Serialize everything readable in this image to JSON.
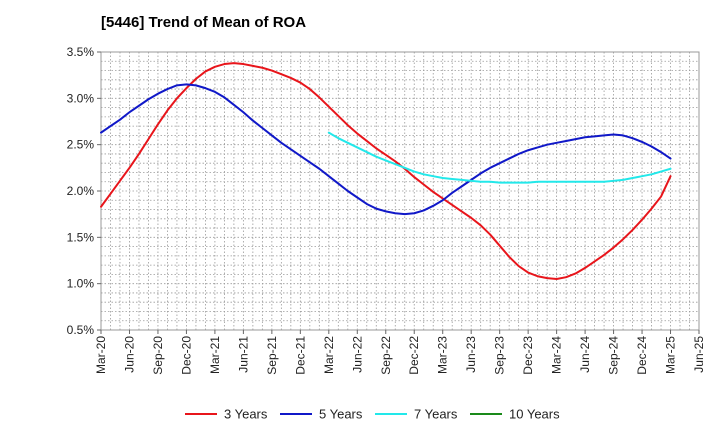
{
  "title": "[5446]  Trend of Mean of ROA",
  "chart_data": {
    "type": "line",
    "title": "[5446]  Trend of Mean of ROA",
    "xlabel": "",
    "ylabel": "",
    "x_ticks": [
      "Mar-20",
      "Jun-20",
      "Sep-20",
      "Dec-20",
      "Mar-21",
      "Jun-21",
      "Sep-21",
      "Dec-21",
      "Mar-22",
      "Jun-22",
      "Sep-22",
      "Dec-22",
      "Mar-23",
      "Jun-23",
      "Sep-23",
      "Dec-23",
      "Mar-24",
      "Jun-24",
      "Sep-24",
      "Dec-24",
      "Mar-25",
      "Jun-25"
    ],
    "y_ticks": [
      "0.5%",
      "1.0%",
      "1.5%",
      "2.0%",
      "2.5%",
      "3.0%",
      "3.5%"
    ],
    "ylim": [
      0.5,
      3.5
    ],
    "grid": true,
    "legend_position": "bottom",
    "series": [
      {
        "name": "3 Years",
        "color": "#e8151b",
        "values": [
          [
            "Mar-20",
            1.83
          ],
          [
            "Apr-20",
            1.97
          ],
          [
            "May-20",
            2.11
          ],
          [
            "Jun-20",
            2.25
          ],
          [
            "Jul-20",
            2.4
          ],
          [
            "Aug-20",
            2.56
          ],
          [
            "Sep-20",
            2.72
          ],
          [
            "Oct-20",
            2.87
          ],
          [
            "Nov-20",
            3.0
          ],
          [
            "Dec-20",
            3.11
          ],
          [
            "Jan-21",
            3.21
          ],
          [
            "Feb-21",
            3.29
          ],
          [
            "Mar-21",
            3.34
          ],
          [
            "Apr-21",
            3.37
          ],
          [
            "May-21",
            3.38
          ],
          [
            "Jun-21",
            3.37
          ],
          [
            "Jul-21",
            3.35
          ],
          [
            "Aug-21",
            3.33
          ],
          [
            "Sep-21",
            3.3
          ],
          [
            "Oct-21",
            3.26
          ],
          [
            "Nov-21",
            3.22
          ],
          [
            "Dec-21",
            3.17
          ],
          [
            "Jan-22",
            3.1
          ],
          [
            "Feb-22",
            3.01
          ],
          [
            "Mar-22",
            2.91
          ],
          [
            "Apr-22",
            2.81
          ],
          [
            "May-22",
            2.71
          ],
          [
            "Jun-22",
            2.62
          ],
          [
            "Jul-22",
            2.54
          ],
          [
            "Aug-22",
            2.46
          ],
          [
            "Sep-22",
            2.39
          ],
          [
            "Oct-22",
            2.32
          ],
          [
            "Nov-22",
            2.24
          ],
          [
            "Dec-22",
            2.15
          ],
          [
            "Jan-23",
            2.07
          ],
          [
            "Feb-23",
            1.99
          ],
          [
            "Mar-23",
            1.92
          ],
          [
            "Apr-23",
            1.85
          ],
          [
            "May-23",
            1.78
          ],
          [
            "Jun-23",
            1.71
          ],
          [
            "Jul-23",
            1.63
          ],
          [
            "Aug-23",
            1.53
          ],
          [
            "Sep-23",
            1.41
          ],
          [
            "Oct-23",
            1.29
          ],
          [
            "Nov-23",
            1.19
          ],
          [
            "Dec-23",
            1.12
          ],
          [
            "Jan-24",
            1.08
          ],
          [
            "Feb-24",
            1.06
          ],
          [
            "Mar-24",
            1.05
          ],
          [
            "Apr-24",
            1.07
          ],
          [
            "May-24",
            1.11
          ],
          [
            "Jun-24",
            1.17
          ],
          [
            "Jul-24",
            1.24
          ],
          [
            "Aug-24",
            1.31
          ],
          [
            "Sep-24",
            1.39
          ],
          [
            "Oct-24",
            1.48
          ],
          [
            "Nov-24",
            1.58
          ],
          [
            "Dec-24",
            1.69
          ],
          [
            "Jan-25",
            1.81
          ],
          [
            "Feb-25",
            1.94
          ],
          [
            "Mar-25",
            2.16
          ]
        ]
      },
      {
        "name": "5 Years",
        "color": "#1018c8",
        "values": [
          [
            "Mar-20",
            2.63
          ],
          [
            "Apr-20",
            2.7
          ],
          [
            "May-20",
            2.77
          ],
          [
            "Jun-20",
            2.85
          ],
          [
            "Jul-20",
            2.92
          ],
          [
            "Aug-20",
            2.99
          ],
          [
            "Sep-20",
            3.05
          ],
          [
            "Oct-20",
            3.1
          ],
          [
            "Nov-20",
            3.14
          ],
          [
            "Dec-20",
            3.15
          ],
          [
            "Jan-21",
            3.14
          ],
          [
            "Feb-21",
            3.11
          ],
          [
            "Mar-21",
            3.07
          ],
          [
            "Apr-21",
            3.01
          ],
          [
            "May-21",
            2.93
          ],
          [
            "Jun-21",
            2.85
          ],
          [
            "Jul-21",
            2.76
          ],
          [
            "Aug-21",
            2.68
          ],
          [
            "Sep-21",
            2.6
          ],
          [
            "Oct-21",
            2.52
          ],
          [
            "Nov-21",
            2.45
          ],
          [
            "Dec-21",
            2.38
          ],
          [
            "Jan-22",
            2.31
          ],
          [
            "Feb-22",
            2.24
          ],
          [
            "Mar-22",
            2.16
          ],
          [
            "Apr-22",
            2.08
          ],
          [
            "May-22",
            2.0
          ],
          [
            "Jun-22",
            1.93
          ],
          [
            "Jul-22",
            1.86
          ],
          [
            "Aug-22",
            1.81
          ],
          [
            "Sep-22",
            1.78
          ],
          [
            "Oct-22",
            1.76
          ],
          [
            "Nov-22",
            1.75
          ],
          [
            "Dec-22",
            1.76
          ],
          [
            "Jan-23",
            1.79
          ],
          [
            "Feb-23",
            1.84
          ],
          [
            "Mar-23",
            1.9
          ],
          [
            "Apr-23",
            1.98
          ],
          [
            "May-23",
            2.05
          ],
          [
            "Jun-23",
            2.12
          ],
          [
            "Jul-23",
            2.19
          ],
          [
            "Aug-23",
            2.25
          ],
          [
            "Sep-23",
            2.3
          ],
          [
            "Oct-23",
            2.35
          ],
          [
            "Nov-23",
            2.4
          ],
          [
            "Dec-23",
            2.44
          ],
          [
            "Jan-24",
            2.47
          ],
          [
            "Feb-24",
            2.5
          ],
          [
            "Mar-24",
            2.52
          ],
          [
            "Apr-24",
            2.54
          ],
          [
            "May-24",
            2.56
          ],
          [
            "Jun-24",
            2.58
          ],
          [
            "Jul-24",
            2.59
          ],
          [
            "Aug-24",
            2.6
          ],
          [
            "Sep-24",
            2.61
          ],
          [
            "Oct-24",
            2.6
          ],
          [
            "Nov-24",
            2.57
          ],
          [
            "Dec-24",
            2.53
          ],
          [
            "Jan-25",
            2.48
          ],
          [
            "Feb-25",
            2.42
          ],
          [
            "Mar-25",
            2.35
          ]
        ]
      },
      {
        "name": "7 Years",
        "color": "#22e8ea",
        "values": [
          [
            "Mar-22",
            2.63
          ],
          [
            "Apr-22",
            2.57
          ],
          [
            "May-22",
            2.52
          ],
          [
            "Jun-22",
            2.47
          ],
          [
            "Jul-22",
            2.42
          ],
          [
            "Aug-22",
            2.37
          ],
          [
            "Sep-22",
            2.33
          ],
          [
            "Oct-22",
            2.29
          ],
          [
            "Nov-22",
            2.25
          ],
          [
            "Dec-22",
            2.21
          ],
          [
            "Jan-23",
            2.18
          ],
          [
            "Feb-23",
            2.16
          ],
          [
            "Mar-23",
            2.14
          ],
          [
            "Apr-23",
            2.13
          ],
          [
            "May-23",
            2.12
          ],
          [
            "Jun-23",
            2.11
          ],
          [
            "Jul-23",
            2.1
          ],
          [
            "Aug-23",
            2.1
          ],
          [
            "Sep-23",
            2.09
          ],
          [
            "Oct-23",
            2.09
          ],
          [
            "Nov-23",
            2.09
          ],
          [
            "Dec-23",
            2.09
          ],
          [
            "Jan-24",
            2.1
          ],
          [
            "Feb-24",
            2.1
          ],
          [
            "Mar-24",
            2.1
          ],
          [
            "Apr-24",
            2.1
          ],
          [
            "May-24",
            2.1
          ],
          [
            "Jun-24",
            2.1
          ],
          [
            "Jul-24",
            2.1
          ],
          [
            "Aug-24",
            2.1
          ],
          [
            "Sep-24",
            2.11
          ],
          [
            "Oct-24",
            2.12
          ],
          [
            "Nov-24",
            2.14
          ],
          [
            "Dec-24",
            2.16
          ],
          [
            "Jan-25",
            2.18
          ],
          [
            "Feb-25",
            2.21
          ],
          [
            "Mar-25",
            2.24
          ]
        ]
      },
      {
        "name": "10 Years",
        "color": "#1a8a1a",
        "values": []
      }
    ]
  }
}
